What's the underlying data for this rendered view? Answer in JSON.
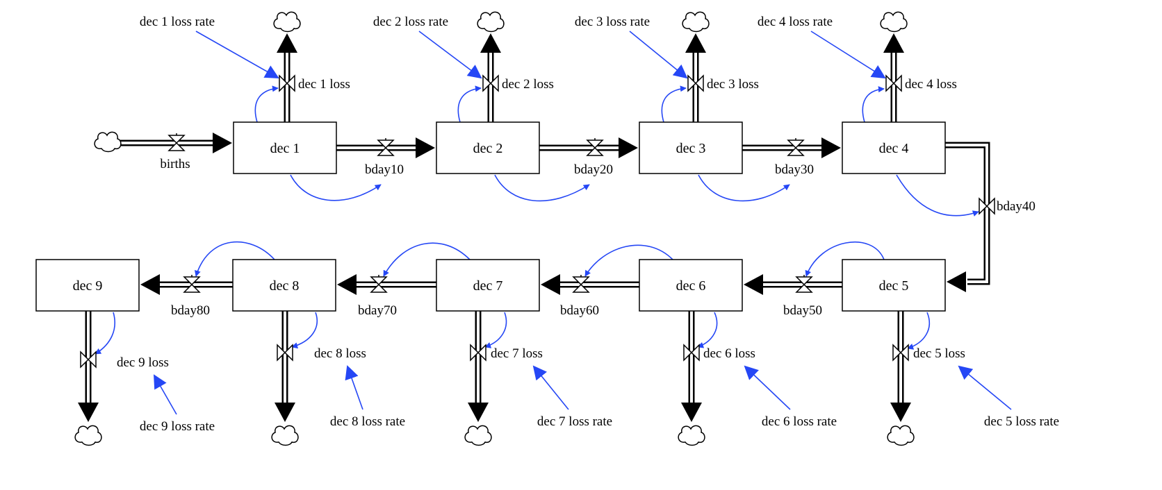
{
  "diagram": {
    "type": "stock-and-flow",
    "colors": {
      "link": "#2547f5",
      "stroke": "#000000",
      "background": "#ffffff"
    },
    "stocks": [
      "dec 1",
      "dec 2",
      "dec 3",
      "dec 4",
      "dec 5",
      "dec 6",
      "dec 7",
      "dec 8",
      "dec 9"
    ],
    "inflow": "births",
    "transfers": [
      "bday10",
      "bday20",
      "bday30",
      "bday40",
      "bday50",
      "bday60",
      "bday70",
      "bday80"
    ],
    "losses": [
      "dec 1 loss",
      "dec 2 loss",
      "dec 3 loss",
      "dec 4 loss",
      "dec 5 loss",
      "dec 6 loss",
      "dec 7 loss",
      "dec 8 loss",
      "dec 9 loss"
    ],
    "loss_rates": [
      "dec 1 loss rate",
      "dec 2 loss rate",
      "dec 3 loss rate",
      "dec 4 loss rate",
      "dec 5 loss rate",
      "dec 6 loss rate",
      "dec 7 loss rate",
      "dec 8 loss rate",
      "dec 9 loss rate"
    ]
  }
}
